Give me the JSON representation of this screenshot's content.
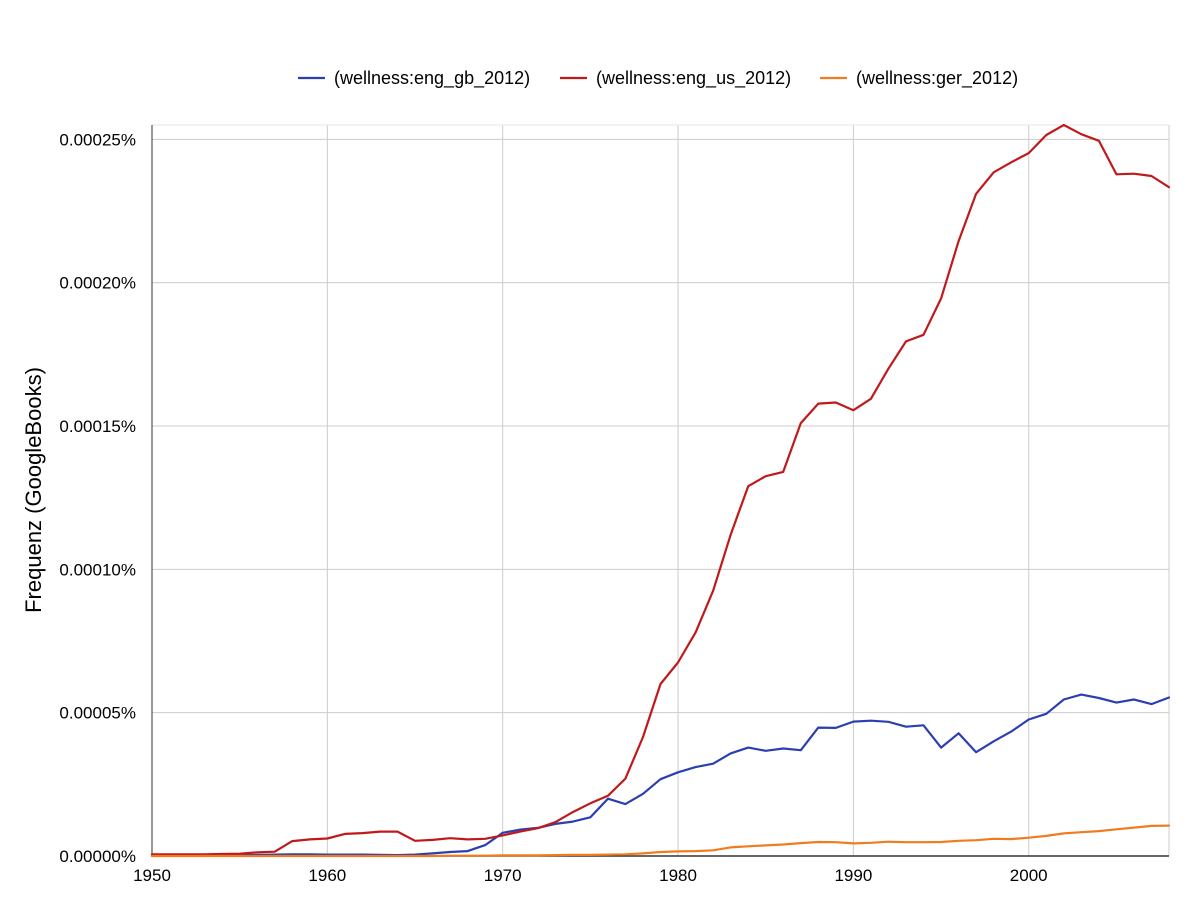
{
  "chart_data": {
    "type": "line",
    "xlabel": "",
    "ylabel": "Frequenz (GoogleBooks)",
    "xlim": [
      1950,
      2008
    ],
    "ylim": [
      0,
      0.000255
    ],
    "grid": true,
    "legend_position": "top",
    "x_ticks": [
      1950,
      1960,
      1970,
      1980,
      1990,
      2000
    ],
    "y_ticks": [
      0,
      5e-05,
      0.0001,
      0.00015,
      0.0002,
      0.00025
    ],
    "y_tick_labels": [
      "0.00000%",
      "0.00005%",
      "0.00010%",
      "0.00015%",
      "0.00020%",
      "0.00025%"
    ],
    "x": [
      1950,
      1951,
      1952,
      1953,
      1954,
      1955,
      1956,
      1957,
      1958,
      1959,
      1960,
      1961,
      1962,
      1963,
      1964,
      1965,
      1966,
      1967,
      1968,
      1969,
      1970,
      1971,
      1972,
      1973,
      1974,
      1975,
      1976,
      1977,
      1978,
      1979,
      1980,
      1981,
      1982,
      1983,
      1984,
      1985,
      1986,
      1987,
      1988,
      1989,
      1990,
      1991,
      1992,
      1993,
      1994,
      1995,
      1996,
      1997,
      1998,
      1999,
      2000,
      2001,
      2002,
      2003,
      2004,
      2005,
      2006,
      2007,
      2008
    ],
    "series": [
      {
        "name": "(wellness:eng_gb_2012)",
        "color": "#2b3fb0",
        "values": [
          2e-07,
          2e-07,
          2e-07,
          2e-07,
          3e-07,
          3e-07,
          4e-07,
          5e-07,
          6e-07,
          6e-07,
          5e-07,
          5e-07,
          5e-07,
          4e-07,
          3e-07,
          5e-07,
          9e-07,
          1.4e-06,
          1.7e-06,
          3.8e-06,
          8.1e-06,
          9.2e-06,
          9.8e-06,
          1.12e-05,
          1.2e-05,
          1.35e-05,
          2e-05,
          1.81e-05,
          2.17e-05,
          2.68e-05,
          2.92e-05,
          3.1e-05,
          3.22e-05,
          3.58e-05,
          3.78e-05,
          3.67e-05,
          3.75e-05,
          3.69e-05,
          4.48e-05,
          4.47e-05,
          4.69e-05,
          4.72e-05,
          4.68e-05,
          4.51e-05,
          4.56e-05,
          3.78e-05,
          4.28e-05,
          3.62e-05,
          4e-05,
          4.34e-05,
          4.76e-05,
          4.96e-05,
          5.46e-05,
          5.63e-05,
          5.51e-05,
          5.35e-05,
          5.46e-05,
          5.3e-05,
          5.53e-05
        ]
      },
      {
        "name": "(wellness:eng_us_2012)",
        "color": "#c0191c",
        "values": [
          6e-07,
          6e-07,
          6e-07,
          6e-07,
          7e-07,
          8e-07,
          1.3e-06,
          1.5e-06,
          5.2e-06,
          5.8e-06,
          6.1e-06,
          7.7e-06,
          8e-06,
          8.5e-06,
          8.5e-06,
          5.3e-06,
          5.6e-06,
          6.2e-06,
          5.8e-06,
          6e-06,
          7.2e-06,
          8.5e-06,
          9.7e-06,
          1.18e-05,
          1.53e-05,
          1.84e-05,
          2.1e-05,
          2.7e-05,
          4.15e-05,
          6e-05,
          6.75e-05,
          7.8e-05,
          9.25e-05,
          0.000112,
          0.000129,
          0.0001325,
          0.000134,
          0.000151,
          0.0001578,
          0.0001582,
          0.0001555,
          0.0001595,
          0.00017,
          0.0001795,
          0.0001818,
          0.0001945,
          0.0002145,
          0.000231,
          0.0002385,
          0.000242,
          0.0002452,
          0.0002515,
          0.000255,
          0.0002518,
          0.0002495,
          0.0002378,
          0.000238,
          0.0002372,
          0.0002333
        ]
      },
      {
        "name": "(wellness:ger_2012)",
        "color": "#f07c20",
        "values": [
          0.0,
          0.0,
          0.0,
          0.0,
          0.0,
          0.0,
          0.0,
          0.0,
          0.0,
          0.0,
          0.0,
          0.0,
          0.0,
          0.0,
          0.0,
          0.0,
          0.0,
          1e-07,
          1e-07,
          1e-07,
          2e-07,
          2e-07,
          2e-07,
          3e-07,
          4e-07,
          4e-07,
          5e-07,
          6e-07,
          9e-07,
          1.4e-06,
          1.6e-06,
          1.7e-06,
          2e-06,
          3e-06,
          3.4e-06,
          3.7e-06,
          4e-06,
          4.5e-06,
          4.9e-06,
          4.8e-06,
          4.4e-06,
          4.6e-06,
          5e-06,
          4.8e-06,
          4.8e-06,
          4.9e-06,
          5.3e-06,
          5.5e-06,
          6e-06,
          5.9e-06,
          6.4e-06,
          7e-06,
          7.9e-06,
          8.3e-06,
          8.7e-06,
          9.3e-06,
          9.9e-06,
          1.05e-05,
          1.06e-05
        ]
      }
    ]
  }
}
